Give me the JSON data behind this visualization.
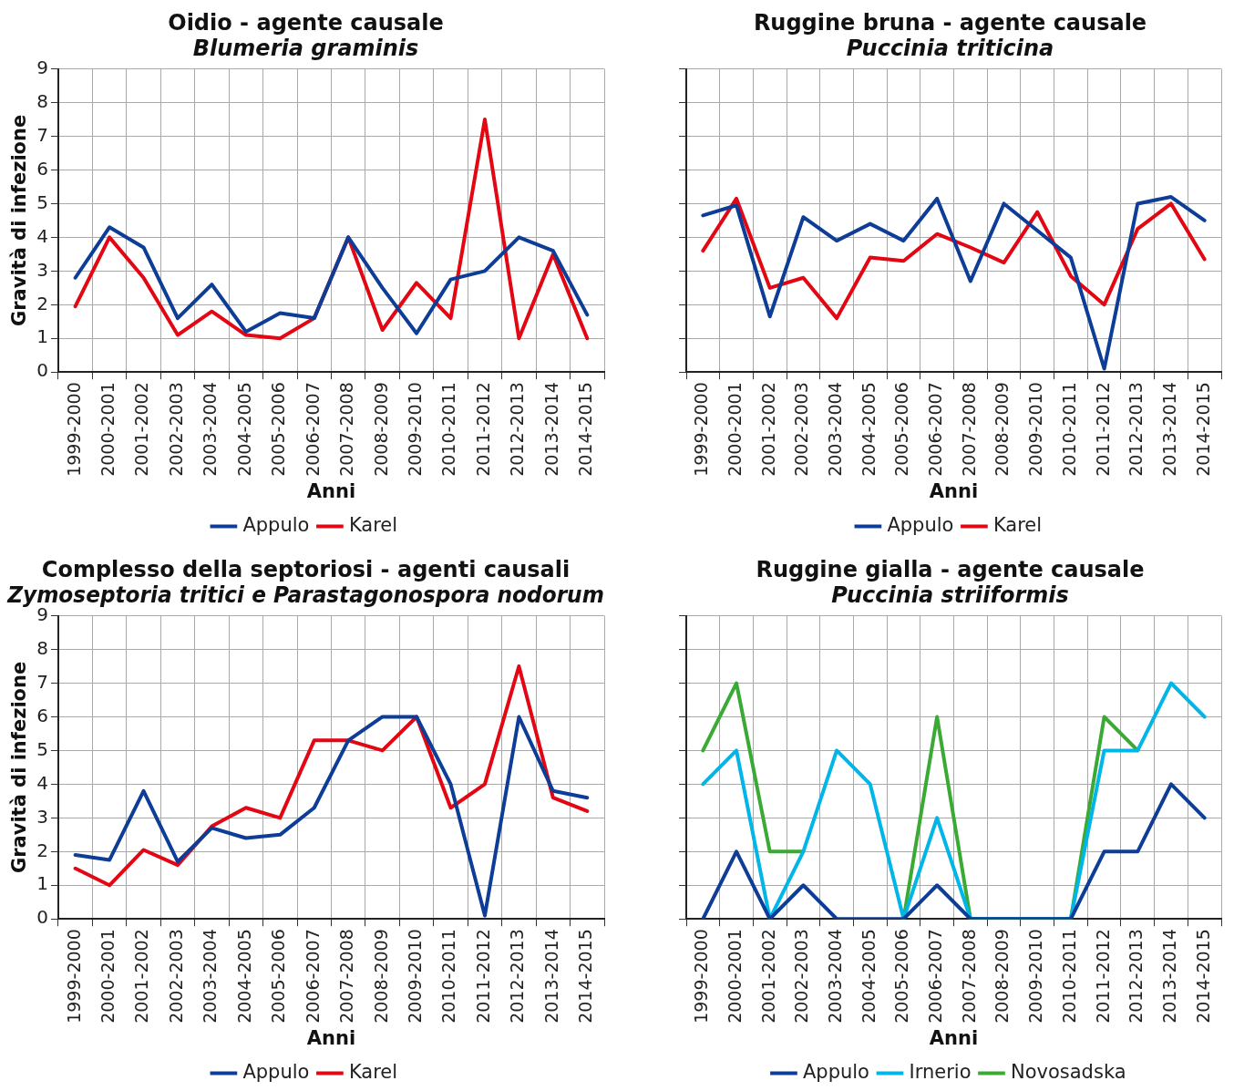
{
  "chart_data": [
    {
      "type": "line",
      "title": "Oidio - agente causale",
      "subtitle": "Blumeria graminis",
      "xlabel": "Anni",
      "ylabel": "Gravità di infezione",
      "categories": [
        "1999-2000",
        "2000-2001",
        "2001-2002",
        "2002-2003",
        "2003-2004",
        "2004-2005",
        "2005-2006",
        "2006-2007",
        "2007-2008",
        "2008-2009",
        "2009-2010",
        "2010-2011",
        "2011-2012",
        "2012-2013",
        "2013-2014",
        "2014-2015"
      ],
      "ylim": [
        0,
        9
      ],
      "yticks": [
        0,
        1,
        2,
        3,
        4,
        5,
        6,
        7,
        8,
        9
      ],
      "grid": true,
      "legend": "bottom",
      "marker": "none",
      "line_style": "solid",
      "series": [
        {
          "name": "Appulo",
          "color": "#0d3d96",
          "values": [
            2.8,
            4.3,
            3.7,
            1.6,
            2.6,
            1.2,
            1.75,
            1.6,
            4.0,
            2.5,
            1.15,
            2.75,
            3.0,
            4.0,
            3.6,
            1.7
          ]
        },
        {
          "name": "Karel",
          "color": "#e30613",
          "values": [
            1.95,
            4.0,
            2.8,
            1.1,
            1.8,
            1.1,
            1.0,
            1.6,
            4.0,
            1.25,
            2.65,
            1.6,
            7.5,
            1.0,
            3.5,
            1.0
          ]
        }
      ]
    },
    {
      "type": "line",
      "title": "Ruggine bruna - agente causale",
      "subtitle": "Puccinia triticina",
      "xlabel": "Anni",
      "categories": [
        "1999-2000",
        "2000-2001",
        "2001-2002",
        "2002-2003",
        "2003-2004",
        "2004-2005",
        "2005-2006",
        "2006-2007",
        "2007-2008",
        "2008-2009",
        "2009-2010",
        "2010-2011",
        "2011-2012",
        "2012-2013",
        "2013-2014",
        "2014-2015"
      ],
      "ylim": [
        0,
        9
      ],
      "yticks": [
        0,
        1,
        2,
        3,
        4,
        5,
        6,
        7,
        8,
        9
      ],
      "tick_labels": "x",
      "grid": true,
      "legend": "bottom",
      "marker": "none",
      "line_style": "solid",
      "series": [
        {
          "name": "Appulo",
          "color": "#0d3d96",
          "values": [
            4.65,
            4.95,
            1.65,
            4.6,
            3.9,
            4.4,
            3.9,
            5.15,
            2.7,
            5.0,
            4.2,
            3.4,
            0.1,
            5.0,
            5.2,
            4.5
          ]
        },
        {
          "name": "Karel",
          "color": "#e30613",
          "values": [
            3.6,
            5.15,
            2.5,
            2.8,
            1.6,
            3.4,
            3.3,
            4.1,
            3.7,
            3.25,
            4.75,
            2.85,
            2.0,
            4.25,
            5.0,
            3.35
          ]
        }
      ]
    },
    {
      "type": "line",
      "title": "Complesso della septoriosi - agenti causali",
      "subtitle": "Zymoseptoria tritici e Parastagonospora nodorum",
      "xlabel": "Anni",
      "ylabel": "Gravità di infezione",
      "categories": [
        "1999-2000",
        "2000-2001",
        "2001-2002",
        "2002-2003",
        "2003-2004",
        "2004-2005",
        "2005-2006",
        "2006-2007",
        "2007-2008",
        "2008-2009",
        "2009-2010",
        "2010-2011",
        "2011-2012",
        "2012-2013",
        "2013-2014",
        "2014-2015"
      ],
      "ylim": [
        0,
        9
      ],
      "yticks": [
        0,
        1,
        2,
        3,
        4,
        5,
        6,
        7,
        8,
        9
      ],
      "grid": true,
      "legend": "bottom",
      "marker": "none",
      "line_style": "solid",
      "series": [
        {
          "name": "Appulo",
          "color": "#0d3d96",
          "values": [
            1.9,
            1.75,
            3.8,
            1.7,
            2.7,
            2.4,
            2.5,
            3.3,
            5.3,
            6.0,
            6.0,
            4.0,
            0.1,
            6.0,
            3.8,
            3.6
          ]
        },
        {
          "name": "Karel",
          "color": "#e30613",
          "values": [
            1.5,
            1.0,
            2.05,
            1.6,
            2.75,
            3.3,
            3.0,
            5.3,
            5.3,
            5.0,
            6.0,
            3.3,
            4.0,
            7.5,
            3.6,
            3.2
          ]
        }
      ]
    },
    {
      "type": "line",
      "title": "Ruggine gialla - agente causale",
      "subtitle": "Puccinia striiformis",
      "xlabel": "Anni",
      "categories": [
        "1999-2000",
        "2000-2001",
        "2001-2002",
        "2002-2003",
        "2003-2004",
        "2004-2005",
        "2005-2006",
        "2006-2007",
        "2007-2008",
        "2008-2009",
        "2009-2010",
        "2010-2011",
        "2011-2012",
        "2012-2013",
        "2013-2014",
        "2014-2015"
      ],
      "ylim": [
        0,
        9
      ],
      "yticks": [
        0,
        1,
        2,
        3,
        4,
        5,
        6,
        7,
        8,
        9
      ],
      "tick_labels": "x",
      "grid": true,
      "legend": "bottom",
      "marker": "none",
      "line_style": "solid",
      "series": [
        {
          "name": "Appulo",
          "color": "#0d3d96",
          "values": [
            0,
            2,
            0,
            1,
            0,
            0,
            0,
            1,
            0,
            0,
            0,
            0,
            2,
            2,
            4,
            3
          ]
        },
        {
          "name": "Irnerio",
          "color": "#00b5e8",
          "values": [
            4,
            5,
            0,
            2,
            5,
            4,
            0,
            3,
            0,
            0,
            0,
            0,
            5,
            5,
            7,
            6
          ]
        },
        {
          "name": "Novosadska",
          "color": "#3aaa35",
          "values": [
            5,
            7,
            2,
            2,
            null,
            null,
            0,
            6,
            0,
            0,
            0,
            0,
            6,
            5,
            null,
            null
          ]
        }
      ]
    }
  ]
}
